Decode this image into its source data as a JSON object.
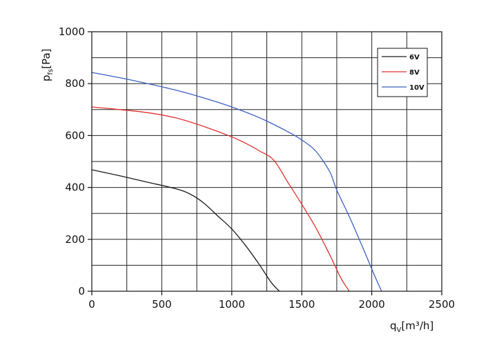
{
  "chart_data": {
    "type": "line",
    "title": "",
    "xlabel": "",
    "ylabel": "",
    "x_axis_label": {
      "main": "q",
      "sub": "V",
      "unit": "[m³/h]"
    },
    "y_axis_label": {
      "main": "p",
      "sub": "fs",
      "unit": "[Pa]"
    },
    "xlim": [
      0,
      2500
    ],
    "ylim": [
      0,
      1000
    ],
    "x_major_ticks": [
      0,
      500,
      1000,
      1500,
      2000,
      2500
    ],
    "y_major_ticks": [
      0,
      200,
      400,
      600,
      800,
      1000
    ],
    "x_tick_labels": [
      "0",
      "500",
      "1000",
      "1500",
      "2000",
      "2500"
    ],
    "y_tick_labels": [
      "0",
      "200",
      "400",
      "600",
      "800",
      "1000"
    ],
    "grid_step_x": 250,
    "grid_step_y": 100,
    "grid": true,
    "legend_position": "top-right",
    "series": [
      {
        "name": "6V",
        "color": "#1a1a1a",
        "points": [
          [
            0,
            468
          ],
          [
            200,
            445
          ],
          [
            400,
            420
          ],
          [
            600,
            395
          ],
          [
            700,
            375
          ],
          [
            800,
            340
          ],
          [
            900,
            290
          ],
          [
            1000,
            240
          ],
          [
            1100,
            175
          ],
          [
            1200,
            100
          ],
          [
            1280,
            35
          ],
          [
            1340,
            0
          ]
        ]
      },
      {
        "name": "8V",
        "color": "#e0302c",
        "points": [
          [
            0,
            710
          ],
          [
            200,
            700
          ],
          [
            400,
            688
          ],
          [
            600,
            668
          ],
          [
            800,
            635
          ],
          [
            1000,
            595
          ],
          [
            1100,
            570
          ],
          [
            1200,
            540
          ],
          [
            1300,
            505
          ],
          [
            1400,
            420
          ],
          [
            1500,
            335
          ],
          [
            1600,
            245
          ],
          [
            1700,
            140
          ],
          [
            1780,
            50
          ],
          [
            1840,
            0
          ]
        ]
      },
      {
        "name": "10V",
        "color": "#3a5fc2",
        "points": [
          [
            0,
            843
          ],
          [
            200,
            823
          ],
          [
            400,
            800
          ],
          [
            600,
            775
          ],
          [
            800,
            745
          ],
          [
            1000,
            710
          ],
          [
            1200,
            668
          ],
          [
            1400,
            615
          ],
          [
            1500,
            583
          ],
          [
            1600,
            540
          ],
          [
            1700,
            460
          ],
          [
            1750,
            390
          ],
          [
            1850,
            275
          ],
          [
            1950,
            150
          ],
          [
            2020,
            60
          ],
          [
            2070,
            0
          ]
        ]
      }
    ]
  }
}
